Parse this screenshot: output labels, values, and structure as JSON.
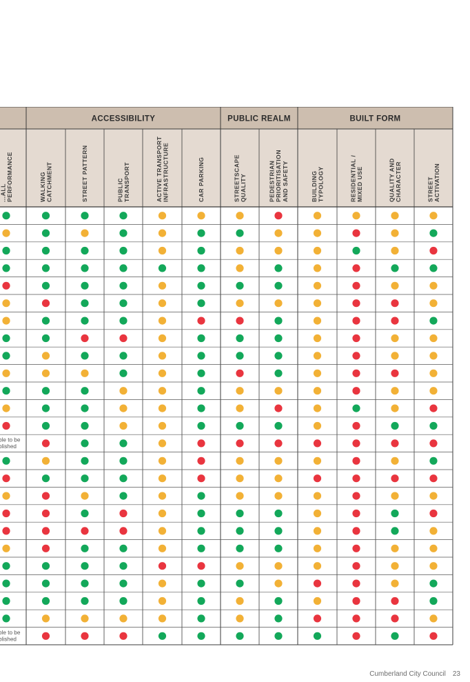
{
  "groups": [
    {
      "id": "perf",
      "label": ""
    },
    {
      "id": "access",
      "label": "ACCESSIBILITY"
    },
    {
      "id": "realm",
      "label": "PUBLIC REALM"
    },
    {
      "id": "built",
      "label": "BUILT FORM"
    }
  ],
  "columns": [
    {
      "group": "perf",
      "label": "...ALL\nPERFORMANCE"
    },
    {
      "group": "access",
      "label": "WALKING\nCATCHMENT"
    },
    {
      "group": "access",
      "label": "STREET PATTERN"
    },
    {
      "group": "access",
      "label": "PUBLIC\nTRANSPORT"
    },
    {
      "group": "access",
      "label": "ACTIVE TRANSPORT\nINFRASTRUCTURE"
    },
    {
      "group": "access",
      "label": "CAR PARKING"
    },
    {
      "group": "realm",
      "label": "STREETSCAPE\nQUALITY"
    },
    {
      "group": "realm",
      "label": "PEDESTRIAN\nPRIORITISATION\nAND SAFETY"
    },
    {
      "group": "built",
      "label": "BUILDING\nTYPOLOGY"
    },
    {
      "group": "built",
      "label": "RESIDENTIAL /\nMIXED USE"
    },
    {
      "group": "built",
      "label": "QUALITY AND\nCHARACTER"
    },
    {
      "group": "built",
      "label": "STREET\nACTIVATION"
    }
  ],
  "legend_colors": {
    "G": "#13a85a",
    "A": "#f2b136",
    "R": "#e9353f"
  },
  "rows": [
    {
      "first": "G",
      "dots": "GGGAAARAAAA"
    },
    {
      "first": "A",
      "dots": "GAGAGGAARAG"
    },
    {
      "first": "G",
      "dots": "GGGAGAAAGAR"
    },
    {
      "first": "G",
      "dots": "GGGGGAGARGG"
    },
    {
      "first": "R",
      "dots": "GGGAGGGARAA"
    },
    {
      "first": "A",
      "dots": "RGGAGAAARRA"
    },
    {
      "first": "A",
      "dots": "GGGARRGARRG"
    },
    {
      "first": "G",
      "dots": "GRRAGGGARAA"
    },
    {
      "first": "G",
      "dots": "AGGAGGGARAA"
    },
    {
      "first": "A",
      "dots": "AAGAGRGARRA"
    },
    {
      "first": "G",
      "dots": "GGAAGAAARAA"
    },
    {
      "first": "A",
      "dots": "GGAAGARAGAR"
    },
    {
      "first": "R",
      "dots": "GGAAGGGARGG"
    },
    {
      "first": "note",
      "note": "ble to be\nblished",
      "dots": "RGGARRRRRRR"
    },
    {
      "first": "G",
      "dots": "AGGARAAARAG"
    },
    {
      "first": "R",
      "dots": "GGGARAARRRR"
    },
    {
      "first": "A",
      "dots": "RAGAGAAARAA"
    },
    {
      "first": "R",
      "dots": "RGRAGGGARGR"
    },
    {
      "first": "R",
      "dots": "RRRAGGGARGA"
    },
    {
      "first": "A",
      "dots": "RGGAGGGARAA"
    },
    {
      "first": "G",
      "dots": "GGGRRAAARAA"
    },
    {
      "first": "G",
      "dots": "GGGAGGARRAG"
    },
    {
      "first": "G",
      "dots": "GGGAGAGARRG"
    },
    {
      "first": "G",
      "dots": "AAAAGAGRRRA"
    },
    {
      "first": "note",
      "note": "ble to be\nblished",
      "dots": "RRRGGGGGRGR"
    }
  ],
  "footer": {
    "council": "Cumberland City Council",
    "page": "23"
  }
}
